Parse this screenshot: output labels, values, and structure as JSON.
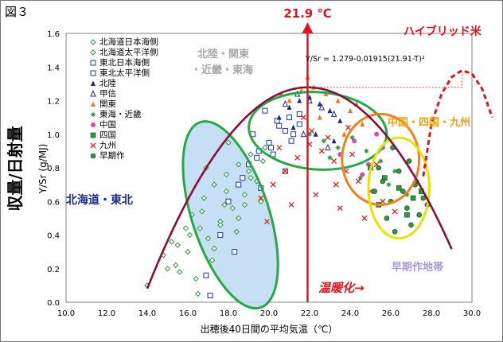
{
  "figure_label": "図３",
  "chart_data": {
    "type": "scatter",
    "xlabel": "出穂後40日間の平均気温（℃）",
    "ylabel": "Y/Sr (g/MJ)",
    "ylabel_big": "収量/日射量",
    "xlim": [
      10.0,
      30.0
    ],
    "ylim": [
      0.0,
      1.6
    ],
    "x_ticks": [
      "10.0",
      "12.0",
      "14.0",
      "16.0",
      "18.0",
      "20.0",
      "22.0",
      "24.0",
      "26.0",
      "28.0",
      "30.0"
    ],
    "y_ticks": [
      "0.0",
      "0.2",
      "0.4",
      "0.6",
      "0.8",
      "1.0",
      "1.2",
      "1.4",
      "1.6"
    ],
    "equation": "Y/Sr = 1.279-0.01915(21.91-T)²",
    "curve": {
      "a": 1.279,
      "b": 0.01915,
      "topt": 21.91,
      "x_from": 14.0,
      "x_to": 29.0
    },
    "hybrid_curve": {
      "x": [
        27.6,
        28.0,
        28.5,
        29.0,
        29.5,
        30.0,
        30.5,
        31.0
      ],
      "y": [
        0.75,
        1.06,
        1.24,
        1.34,
        1.38,
        1.36,
        1.27,
        1.1
      ]
    },
    "optimum_line": {
      "x": 21.9,
      "label": "21.9 ℃"
    },
    "warming_label": "温暖化→",
    "hybrid_label": "ハイブリッド米",
    "regions": [
      {
        "label": "北海道・東北",
        "color": "#1a2a88",
        "cx": 18.1,
        "cy": 0.52,
        "rx": 1.9,
        "ry": 0.58,
        "rot": 18,
        "fill": "#bcd9f3",
        "stroke": "#22aa44"
      },
      {
        "label": "北陸・関東・近畿・東海",
        "color": "#a8a8a8",
        "cx": 22.4,
        "cy": 1.02,
        "rx": 3.4,
        "ry": 0.23,
        "rot": -4,
        "fill": "none",
        "stroke": "#22aa44"
      },
      {
        "label": "中国・四国・九州",
        "color": "#f0a000",
        "cx": 25.5,
        "cy": 0.85,
        "rx": 1.9,
        "ry": 0.27,
        "rot": 0,
        "fill": "none",
        "stroke": "#f08020"
      },
      {
        "label": "早期作地帯",
        "color": "#a99ad8",
        "cx": 26.4,
        "cy": 0.68,
        "rx": 1.5,
        "ry": 0.3,
        "rot": 0,
        "fill": "none",
        "stroke": "#f0e000"
      }
    ],
    "legend_position": "top-left",
    "series": [
      {
        "name": "北海道日本海側",
        "marker": "diamond-open",
        "color": "#2a9a3a",
        "x": [
          14.0,
          14.8,
          15.2,
          15.6,
          15.9,
          16.2,
          16.5,
          16.8,
          17.0,
          17.3,
          17.6,
          17.9,
          18.2,
          18.5,
          18.8,
          19.1,
          19.4,
          19.8,
          15.4,
          16.0,
          16.6,
          17.2,
          17.8,
          18.4,
          19.0,
          19.6,
          16.9,
          18.0
        ],
        "y": [
          0.1,
          0.28,
          0.36,
          0.18,
          0.44,
          0.52,
          0.05,
          0.62,
          0.38,
          0.7,
          0.48,
          0.76,
          0.56,
          0.82,
          0.64,
          0.88,
          0.72,
          0.92,
          0.22,
          0.3,
          0.44,
          0.25,
          0.58,
          0.42,
          0.78,
          0.6,
          0.8,
          0.95
        ]
      },
      {
        "name": "北海道太平洋側",
        "marker": "diamond-open",
        "color": "#2a9a3a",
        "x": [
          15.0,
          15.5,
          16.1,
          16.7,
          17.3,
          17.9,
          18.5,
          19.1,
          19.7,
          16.4,
          17.6,
          18.8
        ],
        "y": [
          0.2,
          0.34,
          0.4,
          0.54,
          0.32,
          0.66,
          0.5,
          0.74,
          0.84,
          0.14,
          0.46,
          0.58
        ]
      },
      {
        "name": "東北日本海側",
        "marker": "square-open",
        "color": "#1a3aa8",
        "x": [
          18.5,
          19.0,
          19.5,
          20.0,
          20.5,
          21.0,
          21.5,
          19.2,
          20.2,
          21.2,
          17.1,
          16.9,
          19.8,
          20.8
        ],
        "y": [
          0.7,
          0.82,
          0.9,
          0.95,
          1.05,
          1.1,
          1.12,
          1.0,
          0.88,
          1.0,
          0.04,
          0.16,
          1.14,
          0.78
        ]
      },
      {
        "name": "東北太平洋側",
        "marker": "square-open",
        "color": "#1a3aa8",
        "x": [
          18.0,
          18.7,
          19.4,
          20.1,
          20.8,
          21.5,
          19.6,
          20.4,
          21.1,
          17.6,
          18.3
        ],
        "y": [
          0.6,
          0.74,
          0.86,
          0.92,
          1.02,
          1.06,
          0.68,
          1.08,
          0.96,
          0.4,
          0.3
        ]
      },
      {
        "name": "北陸",
        "marker": "triangle",
        "color": "#1a2a88",
        "x": [
          20.5,
          21.0,
          21.5,
          22.0,
          22.5,
          23.0,
          23.5,
          21.2,
          22.3,
          23.2
        ],
        "y": [
          1.1,
          1.16,
          1.2,
          1.22,
          1.18,
          1.14,
          1.08,
          1.04,
          1.0,
          0.96
        ]
      },
      {
        "name": "甲信",
        "marker": "triangle-open",
        "color": "#1a2a88",
        "x": [
          20.8,
          21.4,
          22.0,
          22.6,
          23.2,
          21.7,
          22.9
        ],
        "y": [
          1.18,
          1.24,
          1.2,
          1.16,
          1.12,
          1.0,
          0.92
        ]
      },
      {
        "name": "関東",
        "marker": "triangle",
        "color": "#f07818",
        "x": [
          21.0,
          21.6,
          22.2,
          22.8,
          23.4,
          24.0,
          24.6,
          22.5,
          23.7,
          24.3,
          21.9,
          20.6
        ],
        "y": [
          1.2,
          1.26,
          1.28,
          1.24,
          1.2,
          1.14,
          1.06,
          1.1,
          1.0,
          1.18,
          1.34,
          1.24
        ]
      },
      {
        "name": "東海・近畿",
        "marker": "star",
        "color": "#2a9a3a",
        "x": [
          22.0,
          22.7,
          23.4,
          24.1,
          24.8,
          25.5,
          26.2,
          23.0,
          24.5,
          25.9,
          26.8,
          27.3
        ],
        "y": [
          1.0,
          0.96,
          0.92,
          0.98,
          0.9,
          0.84,
          0.78,
          0.86,
          0.74,
          0.7,
          0.64,
          0.72
        ]
      },
      {
        "name": "中国",
        "marker": "circle",
        "color": "#d848b8",
        "x": [
          23.5,
          24.2,
          24.9,
          25.6,
          24.6,
          25.3
        ],
        "y": [
          0.88,
          0.96,
          0.82,
          0.92,
          0.76,
          1.0
        ]
      },
      {
        "name": "四国",
        "marker": "square",
        "color": "#2a9a3a",
        "x": [
          25.0,
          25.7,
          26.4,
          27.1,
          25.4,
          26.8,
          27.5
        ],
        "y": [
          0.8,
          0.74,
          0.68,
          0.62,
          0.58,
          0.52,
          0.66
        ]
      },
      {
        "name": "九州",
        "marker": "cross",
        "color": "#e02020",
        "x": [
          19.6,
          20.2,
          20.8,
          21.4,
          22.0,
          22.6,
          23.2,
          23.8,
          24.4,
          25.0,
          25.6,
          26.2,
          21.1,
          22.3,
          23.5,
          24.7,
          22.9,
          23.9,
          20.5,
          19.9,
          21.7,
          22.1,
          23.3,
          24.1,
          25.3
        ],
        "y": [
          0.62,
          0.7,
          0.78,
          0.86,
          0.94,
          0.9,
          0.84,
          0.78,
          0.72,
          0.66,
          0.6,
          0.54,
          0.58,
          0.64,
          0.56,
          0.5,
          0.98,
          1.04,
          0.92,
          0.48,
          1.1,
          1.02,
          0.7,
          0.88,
          0.82
        ]
      },
      {
        "name": "早期作",
        "marker": "circle-filled",
        "color": "#2a9a3a",
        "x": [
          25.2,
          25.6,
          26.0,
          26.4,
          26.8,
          27.2,
          27.6,
          25.8,
          26.6,
          27.4,
          26.2,
          27.0,
          25.4,
          26.9,
          27.8,
          26.1
        ],
        "y": [
          0.66,
          0.72,
          0.6,
          0.78,
          0.56,
          0.7,
          0.62,
          0.5,
          0.66,
          0.52,
          0.42,
          0.46,
          0.8,
          0.84,
          0.58,
          0.92
        ]
      }
    ]
  }
}
